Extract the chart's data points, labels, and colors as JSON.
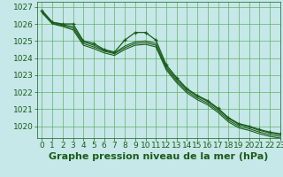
{
  "title": "Graphe pression niveau de la mer (hPa)",
  "xlim": [
    -0.5,
    23
  ],
  "ylim": [
    1019.3,
    1027.3
  ],
  "yticks": [
    1020,
    1021,
    1022,
    1023,
    1024,
    1025,
    1026,
    1027
  ],
  "xticks": [
    0,
    1,
    2,
    3,
    4,
    5,
    6,
    7,
    8,
    9,
    10,
    11,
    12,
    13,
    14,
    15,
    16,
    17,
    18,
    19,
    20,
    21,
    22,
    23
  ],
  "background_color": "#c6e8e8",
  "grid_color": "#5aaa5a",
  "line_color": "#1a5c1a",
  "lines": [
    [
      1026.8,
      1026.1,
      1026.0,
      1026.0,
      1025.0,
      1024.85,
      1024.5,
      1024.35,
      1025.05,
      1025.5,
      1025.5,
      1025.05,
      1023.6,
      1022.85,
      1022.2,
      1021.8,
      1021.5,
      1021.05,
      1020.5,
      1020.15,
      1020.0,
      1019.8,
      1019.65,
      1019.55
    ],
    [
      1026.75,
      1026.1,
      1025.95,
      1025.85,
      1024.95,
      1024.75,
      1024.45,
      1024.3,
      1024.7,
      1024.95,
      1025.0,
      1024.85,
      1023.5,
      1022.75,
      1022.15,
      1021.75,
      1021.45,
      1021.0,
      1020.45,
      1020.1,
      1019.95,
      1019.75,
      1019.6,
      1019.5
    ],
    [
      1026.7,
      1026.05,
      1025.9,
      1025.75,
      1024.85,
      1024.65,
      1024.4,
      1024.25,
      1024.6,
      1024.85,
      1024.9,
      1024.75,
      1023.4,
      1022.65,
      1022.05,
      1021.65,
      1021.35,
      1020.9,
      1020.35,
      1020.0,
      1019.85,
      1019.65,
      1019.5,
      1019.4
    ],
    [
      1026.65,
      1026.0,
      1025.85,
      1025.65,
      1024.75,
      1024.55,
      1024.3,
      1024.15,
      1024.5,
      1024.75,
      1024.8,
      1024.65,
      1023.3,
      1022.55,
      1021.95,
      1021.55,
      1021.25,
      1020.8,
      1020.25,
      1019.9,
      1019.75,
      1019.55,
      1019.4,
      1019.3
    ]
  ],
  "title_fontsize": 8,
  "tick_fontsize": 6.5
}
